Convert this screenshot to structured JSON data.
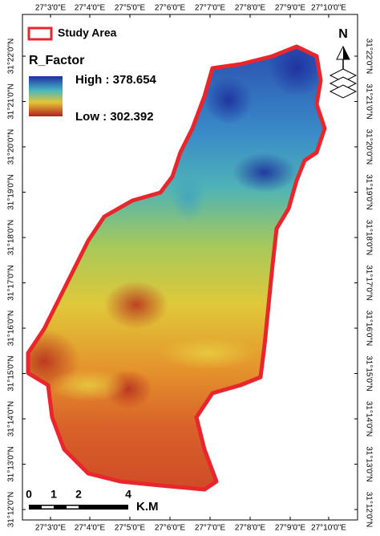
{
  "coordinates": {
    "longitudes": [
      "27°3'0\"E",
      "27°4'0\"E",
      "27°5'0\"E",
      "27°6'0\"E",
      "27°7'0\"E",
      "27°8'0\"E",
      "27°9'0\"E",
      "27°10'0\"E"
    ],
    "latitudes": [
      "31°22'0\"N",
      "31°21'0\"N",
      "31°20'0\"N",
      "31°19'0\"N",
      "31°18'0\"N",
      "31°17'0\"N",
      "31°16'0\"N",
      "31°15'0\"N",
      "31°14'0\"N",
      "31°13'0\"N",
      "31°12'0\"N"
    ]
  },
  "legend": {
    "study_area": "Study Area",
    "title": "R_Factor",
    "high": "High : 378.654",
    "low": "Low : 302.392"
  },
  "scale_bar": {
    "labels": [
      "0",
      "1",
      "2",
      "4"
    ],
    "unit": "K.M"
  },
  "north_arrow": "N"
}
